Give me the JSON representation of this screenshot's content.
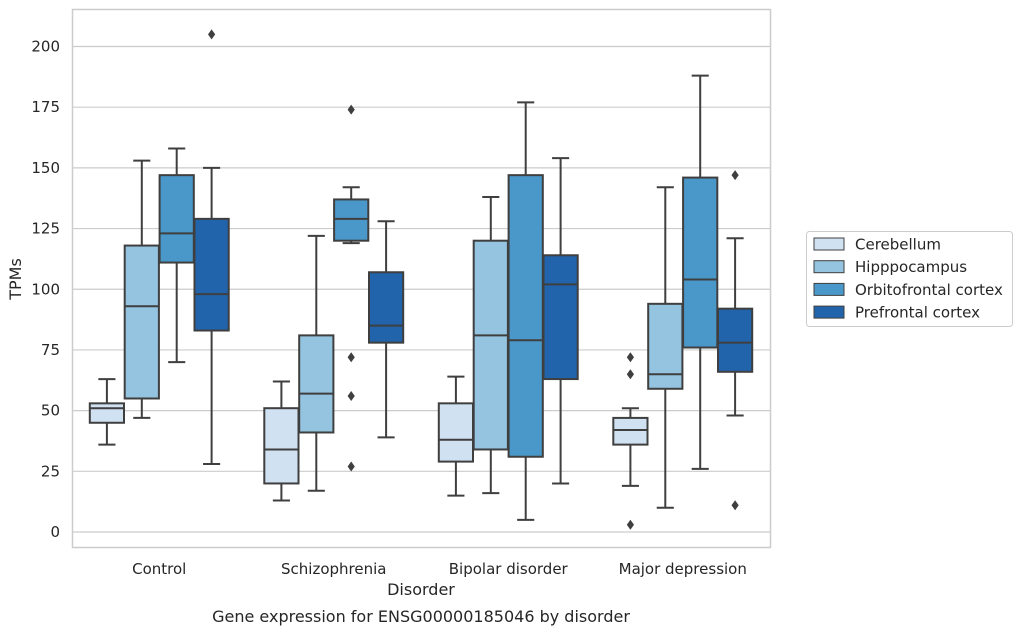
{
  "chart_data": {
    "type": "box",
    "caption": "Gene expression for ENSG00000185046 by disorder",
    "xlabel": "Disorder",
    "ylabel": "TPMs",
    "ylim": [
      -6,
      216
    ],
    "yticks": [
      0,
      25,
      50,
      75,
      100,
      125,
      150,
      175,
      200
    ],
    "grid": true,
    "legend_position": "right",
    "categories": [
      "Control",
      "Schizophrenia",
      "Bipolar disorder",
      "Major depression"
    ],
    "series": [
      {
        "name": "Cerebellum",
        "color": "#d0e1f2",
        "boxes": [
          {
            "whislo": 36,
            "q1": 45,
            "med": 51,
            "q3": 53,
            "whishi": 63,
            "fliers": []
          },
          {
            "whislo": 13,
            "q1": 20,
            "med": 34,
            "q3": 51,
            "whishi": 62,
            "fliers": []
          },
          {
            "whislo": 15,
            "q1": 29,
            "med": 38,
            "q3": 53,
            "whishi": 64,
            "fliers": []
          },
          {
            "whislo": 19,
            "q1": 36,
            "med": 42,
            "q3": 47,
            "whishi": 51,
            "fliers": [
              3
            ]
          }
        ]
      },
      {
        "name": "Hipppocampus",
        "color": "#94c4df",
        "boxes": [
          {
            "whislo": 47,
            "q1": 55,
            "med": 93,
            "q3": 118,
            "whishi": 153,
            "fliers": []
          },
          {
            "whislo": 17,
            "q1": 41,
            "med": 57,
            "q3": 81,
            "whishi": 122,
            "fliers": []
          },
          {
            "whislo": 16,
            "q1": 34,
            "med": 81,
            "q3": 120,
            "whishi": 138,
            "fliers": []
          },
          {
            "whislo": 10,
            "q1": 59,
            "med": 65,
            "q3": 94,
            "whishi": 142,
            "fliers": []
          }
        ]
      },
      {
        "name": "Orbitofrontal cortex",
        "color": "#4a98c9",
        "boxes": [
          {
            "whislo": 70,
            "q1": 111,
            "med": 123,
            "q3": 147,
            "whishi": 158,
            "fliers": []
          },
          {
            "whislo": 119,
            "q1": 120,
            "med": 129,
            "q3": 137,
            "whishi": 142,
            "fliers": [
              174,
              72,
              56,
              27
            ]
          },
          {
            "whislo": 5,
            "q1": 31,
            "med": 79,
            "q3": 147,
            "whishi": 177,
            "fliers": []
          },
          {
            "whislo": 26,
            "q1": 76,
            "med": 104,
            "q3": 146,
            "whishi": 188,
            "fliers": []
          }
        ]
      },
      {
        "name": "Prefrontal cortex",
        "color": "#2164ab",
        "boxes": [
          {
            "whislo": 28,
            "q1": 83,
            "med": 98,
            "q3": 129,
            "whishi": 150,
            "fliers": [
              205
            ]
          },
          {
            "whislo": 39,
            "q1": 78,
            "med": 85,
            "q3": 107,
            "whishi": 128,
            "fliers": []
          },
          {
            "whislo": 20,
            "q1": 63,
            "med": 102,
            "q3": 114,
            "whishi": 154,
            "fliers": []
          },
          {
            "whislo": 48,
            "q1": 66,
            "med": 78,
            "q3": 92,
            "whishi": 121,
            "fliers": [
              147,
              11
            ]
          }
        ]
      }
    ],
    "extra_fliers": [
      {
        "category": 3,
        "position": 0.5,
        "values": [
          72,
          65
        ]
      }
    ]
  }
}
